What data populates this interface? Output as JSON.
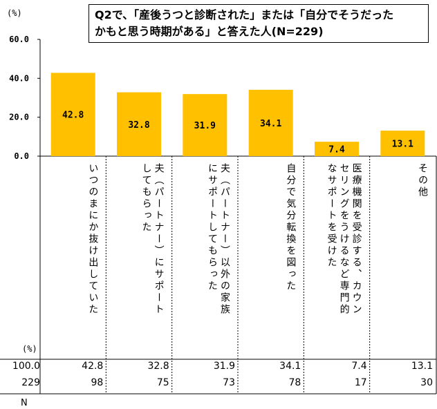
{
  "title_lines": [
    "Q2で、「産後うつと診断された」または「自分でそうだった",
    "かもと思う時期がある」と答えた人(N=229)"
  ],
  "y_unit": "(%)",
  "pct_unit_label": "(%)",
  "n_label": "N",
  "chart_data": {
    "type": "bar",
    "title": "Q2で、「産後うつと診断された」または「自分でそうだったかもと思う時期がある」と答えた人(N=229)",
    "categories": [
      "いつのまにか抜け出していた",
      "夫（パートナー）にサポートしてもらった",
      "夫（パートナー）以外の家族にサポートしてもらった",
      "自分で気分転換を図った",
      "医療機関を受診する、カウンセリングをうけるなど専門的なサポートを受けた",
      "その他"
    ],
    "values": [
      42.8,
      32.8,
      31.9,
      34.1,
      7.4,
      13.1
    ],
    "data_labels": [
      "42.8",
      "32.8",
      "31.9",
      "34.1",
      "7.4",
      "13.1"
    ],
    "ylim": [
      0,
      60
    ],
    "yticks": [
      "0.0",
      "20.0",
      "40.0",
      "60.0"
    ],
    "ylabel": "(%)",
    "bar_color": "#FFC000",
    "grid": false
  },
  "table": {
    "total_pct": "100.0",
    "total_n": "229",
    "pct_row": [
      "42.8",
      "32.8",
      "31.9",
      "34.1",
      "7.4",
      "13.1"
    ],
    "n_row": [
      "98",
      "75",
      "73",
      "78",
      "17",
      "30"
    ]
  },
  "category_display": [
    [
      "いつのまにか抜け出していた"
    ],
    [
      "夫（パートナー）にサポート",
      "してもらった"
    ],
    [
      "夫（パートナー）以外の家族",
      "にサポートしてもらった"
    ],
    [
      "自分で気分転換を図った"
    ],
    [
      "医療機関を受診する、カウン",
      "セリングをうけるなど専門的",
      "なサポートを受けた"
    ],
    [
      "その他"
    ]
  ]
}
